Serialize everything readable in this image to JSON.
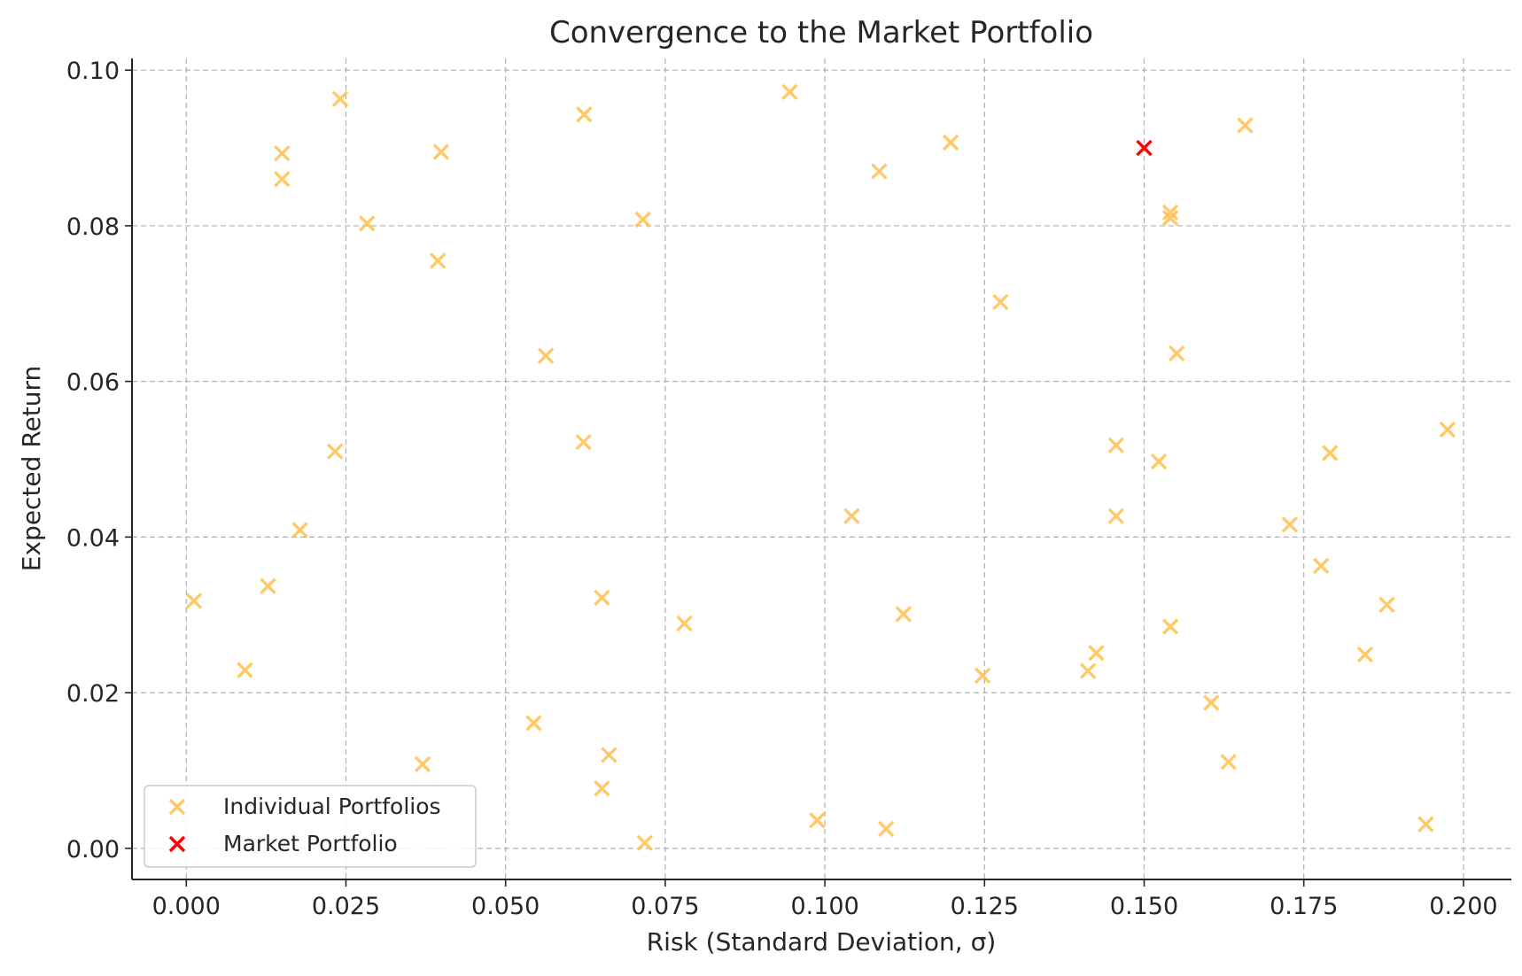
{
  "chart_data": {
    "type": "scatter",
    "title": "Convergence to the Market Portfolio",
    "xlabel": "Risk (Standard Deviation, σ)",
    "ylabel": "Expected Return",
    "xlim": [
      -0.0085,
      0.2075
    ],
    "ylim": [
      -0.004,
      0.1015
    ],
    "xticks": [
      0.0,
      0.025,
      0.05,
      0.075,
      0.1,
      0.125,
      0.15,
      0.175,
      0.2
    ],
    "xtick_labels": [
      "0.000",
      "0.025",
      "0.050",
      "0.075",
      "0.100",
      "0.125",
      "0.150",
      "0.175",
      "0.200"
    ],
    "yticks": [
      0.0,
      0.02,
      0.04,
      0.06,
      0.08,
      0.1
    ],
    "ytick_labels": [
      "0.00",
      "0.02",
      "0.04",
      "0.06",
      "0.08",
      "0.10"
    ],
    "grid": true,
    "legend_position": "lower-left",
    "series": [
      {
        "name": "Individual Portfolios",
        "marker": "x",
        "color": "#ffc04d",
        "points": [
          [
            0.0012,
            0.0318
          ],
          [
            0.0092,
            0.0229
          ],
          [
            0.0128,
            0.0337
          ],
          [
            0.015,
            0.0893
          ],
          [
            0.015,
            0.086
          ],
          [
            0.0178,
            0.0409
          ],
          [
            0.0233,
            0.051
          ],
          [
            0.0241,
            0.0963
          ],
          [
            0.0283,
            0.0803
          ],
          [
            0.037,
            0.0108
          ],
          [
            0.0394,
            0.0755
          ],
          [
            0.0399,
            0.0895
          ],
          [
            0.0544,
            0.0161
          ],
          [
            0.0563,
            0.0633
          ],
          [
            0.0622,
            0.0522
          ],
          [
            0.0623,
            0.0943
          ],
          [
            0.0651,
            0.0077
          ],
          [
            0.0651,
            0.0322
          ],
          [
            0.0662,
            0.012
          ],
          [
            0.0715,
            0.0808
          ],
          [
            0.0718,
            0.0007
          ],
          [
            0.078,
            0.0289
          ],
          [
            0.0945,
            0.0972
          ],
          [
            0.0988,
            0.0036
          ],
          [
            0.1042,
            0.0427
          ],
          [
            0.1085,
            0.087
          ],
          [
            0.1096,
            0.0025
          ],
          [
            0.1123,
            0.0301
          ],
          [
            0.1197,
            0.0907
          ],
          [
            0.1247,
            0.0222
          ],
          [
            0.1275,
            0.0702
          ],
          [
            0.1412,
            0.0228
          ],
          [
            0.1425,
            0.0251
          ],
          [
            0.1456,
            0.0518
          ],
          [
            0.1456,
            0.0427
          ],
          [
            0.1523,
            0.0497
          ],
          [
            0.1541,
            0.0817
          ],
          [
            0.1541,
            0.081
          ],
          [
            0.1541,
            0.0285
          ],
          [
            0.1551,
            0.0636
          ],
          [
            0.1605,
            0.0187
          ],
          [
            0.1632,
            0.0111
          ],
          [
            0.1658,
            0.0929
          ],
          [
            0.1728,
            0.0416
          ],
          [
            0.1777,
            0.0363
          ],
          [
            0.1791,
            0.0508
          ],
          [
            0.1846,
            0.0249
          ],
          [
            0.188,
            0.0313
          ],
          [
            0.1941,
            0.0031
          ],
          [
            0.1975,
            0.0538
          ]
        ]
      },
      {
        "name": "Market Portfolio",
        "marker": "x",
        "color": "#ff0000",
        "points": [
          [
            0.15,
            0.09
          ]
        ]
      }
    ]
  }
}
